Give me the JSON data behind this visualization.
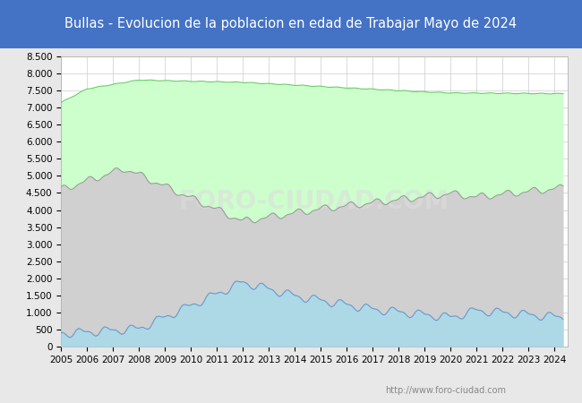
{
  "title": "Bullas - Evolucion de la poblacion en edad de Trabajar Mayo de 2024",
  "title_color": "white",
  "title_bg_color": "#4472c4",
  "ylim": [
    0,
    8500
  ],
  "yticks": [
    0,
    500,
    1000,
    1500,
    2000,
    2500,
    3000,
    3500,
    4000,
    4500,
    5000,
    5500,
    6000,
    6500,
    7000,
    7500,
    8000,
    8500
  ],
  "ytick_labels": [
    "0",
    "500",
    "1.000",
    "1.500",
    "2.000",
    "2.500",
    "3.000",
    "3.500",
    "4.000",
    "4.500",
    "5.000",
    "5.500",
    "6.000",
    "6.500",
    "7.000",
    "7.500",
    "8.000",
    "8.500"
  ],
  "year_start": 2005,
  "year_end": 2024,
  "n_months": 233,
  "watermark": "http://www.foro-ciudad.com",
  "ocupados_fill": "#d0d0d0",
  "ocupados_line": "#999999",
  "parados_fill": "#add8e6",
  "parados_line": "#6699cc",
  "hab_fill": "#ccffcc",
  "hab_line": "#66cc66",
  "plot_bg_color": "white",
  "grid_color": "#cccccc"
}
